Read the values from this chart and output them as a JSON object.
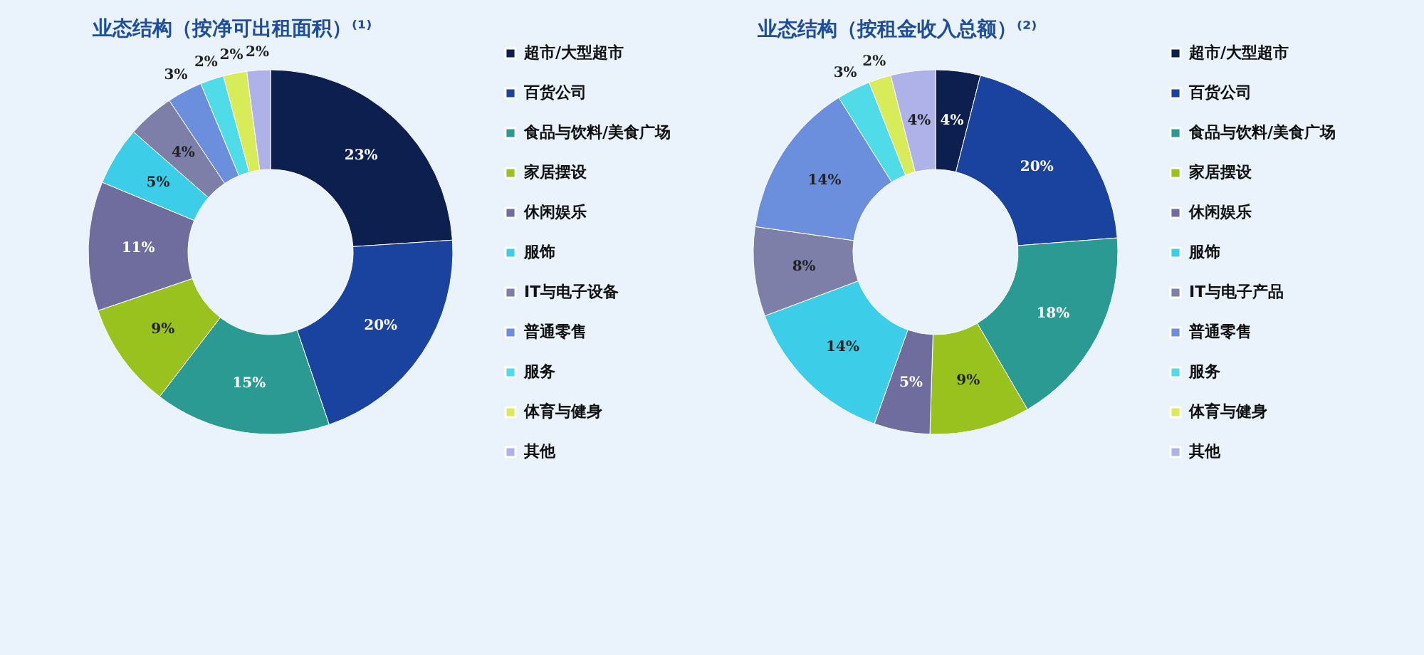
{
  "chart_data": [
    {
      "type": "donut",
      "title": "业态结构（按净可出租面积）⁽¹⁾",
      "legend": "right",
      "categories": [
        "超市/大型超市",
        "百货公司",
        "食品与饮料/美食广场",
        "家居摆设",
        "休闲娱乐",
        "服饰",
        "IT与电子设备",
        "普通零售",
        "服务",
        "体育与健身",
        "其他"
      ],
      "values": [
        23,
        20,
        15,
        9,
        11,
        5,
        4,
        3,
        2,
        2,
        2
      ],
      "value_labels": [
        "23%",
        "20%",
        "15%",
        "9%",
        "11%",
        "5%",
        "4%",
        "3%",
        "2%",
        "2%",
        "2%"
      ],
      "colors": [
        "#0c1f4f",
        "#1a43a0",
        "#2a9a92",
        "#9ac21f",
        "#6f6c9e",
        "#3ccde8",
        "#7d7fa8",
        "#6b8fdc",
        "#4fdbe8",
        "#d8ec5a",
        "#aeb2e8"
      ]
    },
    {
      "type": "donut",
      "title": "业态结构（按租金收入总额）⁽²⁾",
      "legend": "right",
      "categories": [
        "超市/大型超市",
        "百货公司",
        "食品与饮料/美食广场",
        "家居摆设",
        "休闲娱乐",
        "服饰",
        "IT与电子产品",
        "普通零售",
        "服务",
        "体育与健身",
        "其他"
      ],
      "values": [
        4,
        20,
        18,
        9,
        5,
        14,
        8,
        14,
        3,
        2,
        4
      ],
      "value_labels": [
        "4%",
        "20%",
        "18%",
        "9%",
        "5%",
        "14%",
        "8%",
        "14%",
        "3%",
        "2%",
        "4%"
      ],
      "colors": [
        "#0c1f4f",
        "#1a43a0",
        "#2a9a92",
        "#9ac21f",
        "#6f6c9e",
        "#3ccde8",
        "#7d7fa8",
        "#6b8fdc",
        "#4fdbe8",
        "#d8ec5a",
        "#aeb2e8"
      ]
    }
  ]
}
